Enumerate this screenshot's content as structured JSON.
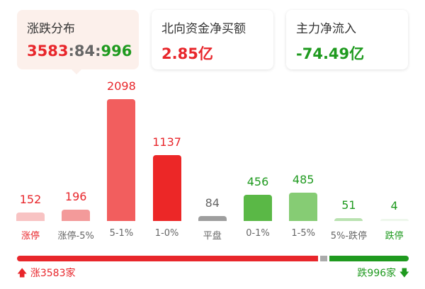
{
  "cards": [
    {
      "title": "涨跌分布",
      "up": "3583",
      "sep1": ":",
      "flat": "84",
      "sep2": ":",
      "down": "996"
    },
    {
      "title": "北向资金净买额",
      "value": "2.85亿"
    },
    {
      "title": "主力净流入",
      "value": "-74.49亿"
    }
  ],
  "chart_data": {
    "type": "bar",
    "categories": [
      "涨停",
      "涨停-5%",
      "5-1%",
      "1-0%",
      "平盘",
      "0-1%",
      "1-5%",
      "5%-跌停",
      "跌停"
    ],
    "values": [
      152,
      196,
      2098,
      1137,
      84,
      456,
      485,
      51,
      4
    ],
    "bar_colors": [
      "#f8c3c3",
      "#f39a9a",
      "#f25e5e",
      "#ec2727",
      "#9e9e9e",
      "#5ab846",
      "#86cc74",
      "#b9e2b0",
      "#eef7ec"
    ],
    "value_colors": [
      "#e8262b",
      "#e8262b",
      "#e8262b",
      "#e8262b",
      "#666666",
      "#1f9a1f",
      "#1f9a1f",
      "#1f9a1f",
      "#1f9a1f"
    ],
    "label_colors": [
      "#e8262b",
      "#666666",
      "#666666",
      "#666666",
      "#666666",
      "#666666",
      "#666666",
      "#666666",
      "#1f9a1f"
    ]
  },
  "summary": {
    "up_count": 3583,
    "flat_count": 84,
    "down_count": 996,
    "up_text": "涨3583家",
    "down_text": "跌996家",
    "up_icon": "arrow-up-icon",
    "down_icon": "arrow-down-icon"
  },
  "colors": {
    "up": "#e8262b",
    "down": "#1f9a1f",
    "flat": "#aaaaaa"
  }
}
